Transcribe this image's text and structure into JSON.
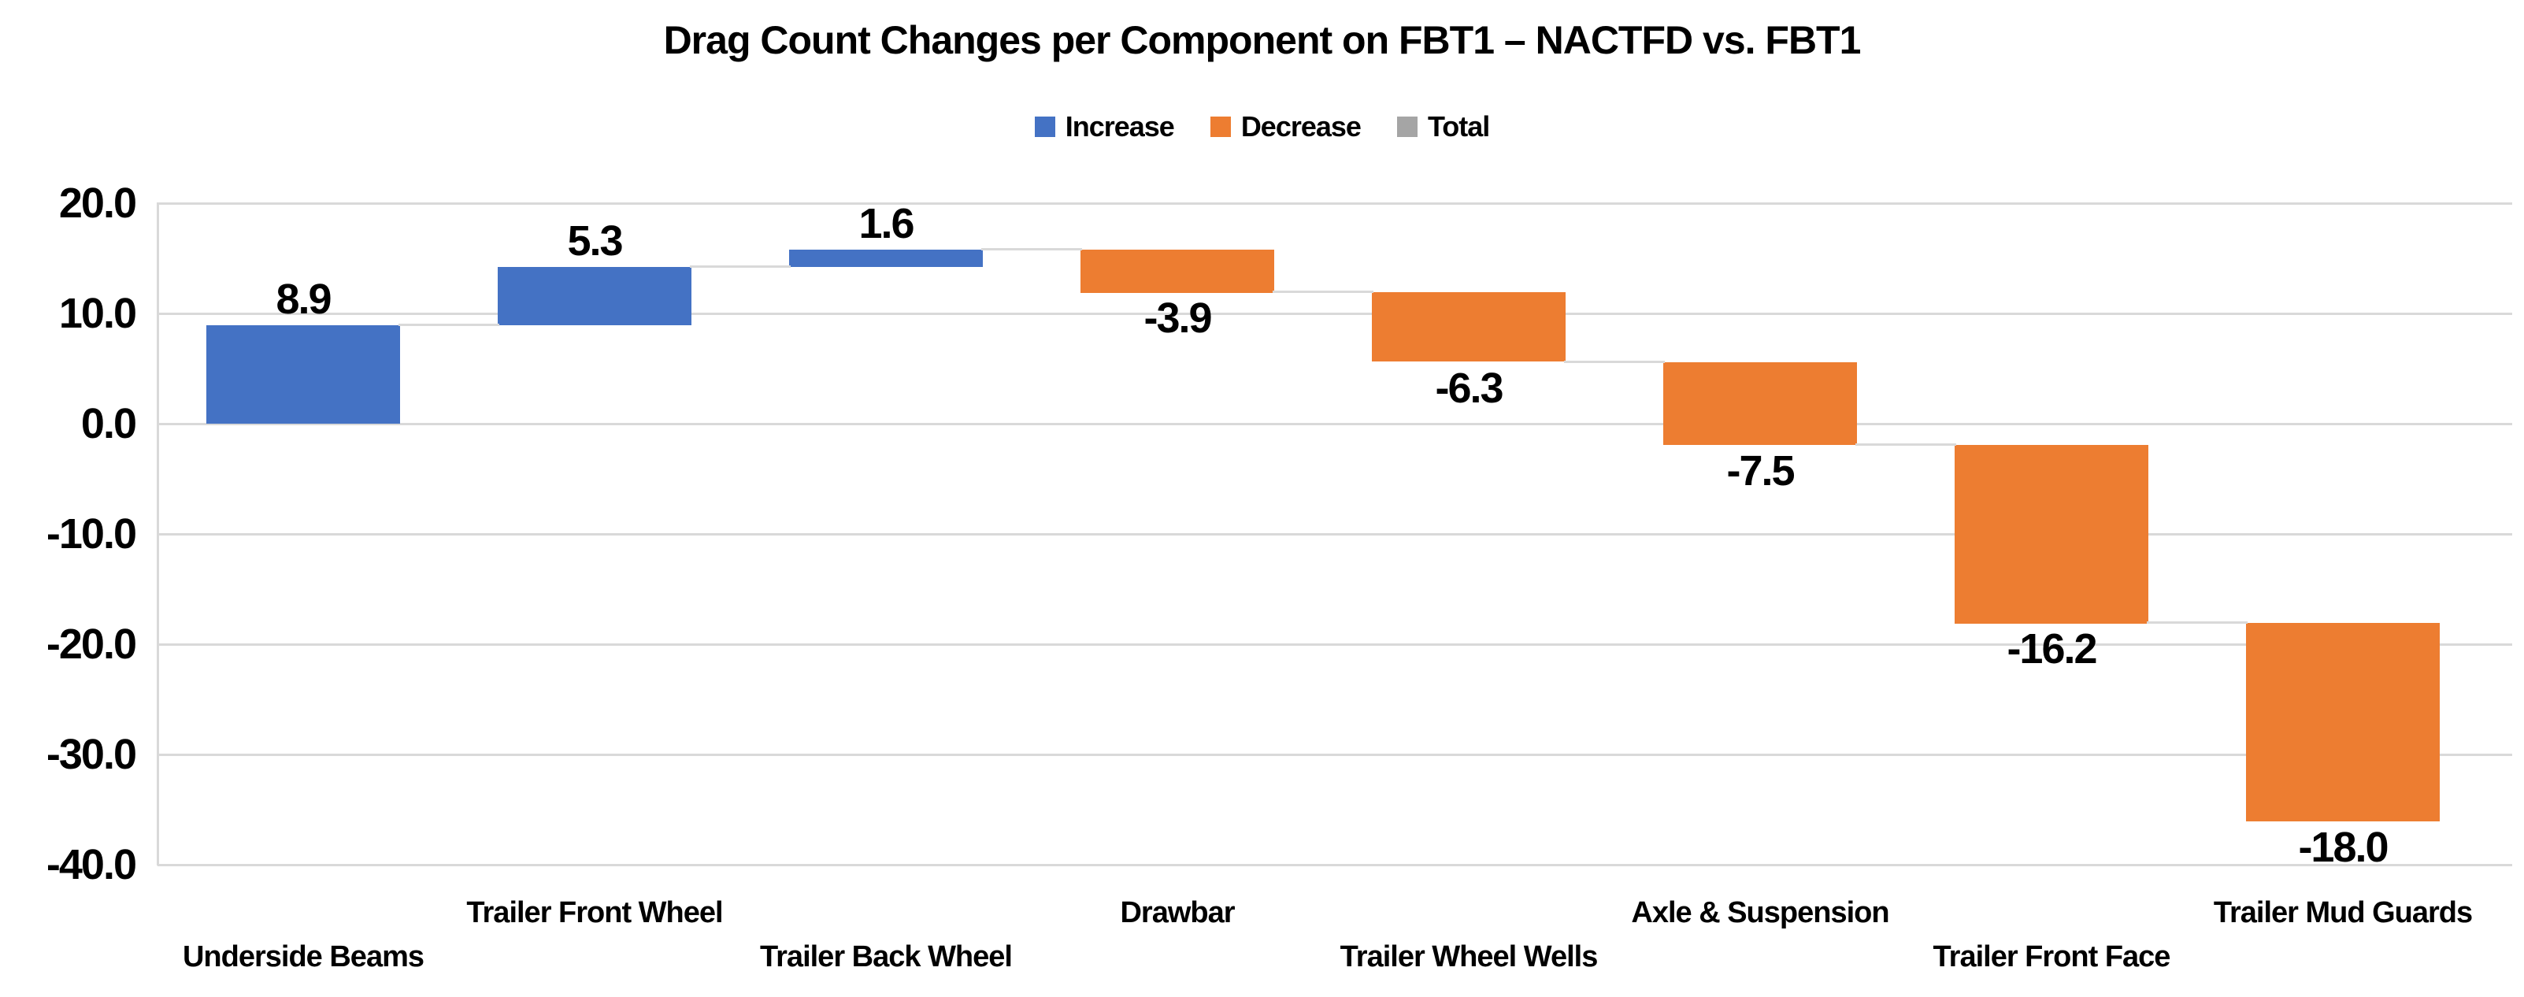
{
  "chart_data": {
    "type": "bar",
    "subtype": "waterfall",
    "title": "Drag Count Changes per Component on FBT1 – NACTFD vs. FBT1",
    "categories": [
      "Underside Beams",
      "Trailer Front Wheel",
      "Trailer Back Wheel",
      "Drawbar",
      "Trailer Wheel Wells",
      "Axle & Suspension",
      "Trailer Front Face",
      "Trailer Mud Guards"
    ],
    "values": [
      8.9,
      5.3,
      1.6,
      -3.9,
      -6.3,
      -7.5,
      -16.2,
      -18.0
    ],
    "data_labels": [
      "8.9",
      "5.3",
      "1.6",
      "-3.9",
      "-6.3",
      "-7.5",
      "-16.2",
      "-18.0"
    ],
    "cumulative": [
      8.9,
      14.2,
      15.8,
      11.9,
      5.6,
      -1.9,
      -18.1,
      -36.1
    ],
    "xlabel": "",
    "ylabel": "",
    "ylim": [
      -40,
      20
    ],
    "y_ticks": [
      20,
      10,
      0,
      -10,
      -20,
      -30,
      -40
    ],
    "y_tick_labels": [
      "20.0",
      "10.0",
      "0.0",
      "-10.0",
      "-20.0",
      "-30.0",
      "-40.0"
    ],
    "grid": true,
    "legend": {
      "position": "top",
      "entries": [
        {
          "label": "Increase",
          "color": "#4472C4"
        },
        {
          "label": "Decrease",
          "color": "#ED7D31"
        },
        {
          "label": "Total",
          "color": "#A5A5A5"
        }
      ]
    },
    "colors": {
      "increase": "#4472C4",
      "decrease": "#ED7D31",
      "total": "#A5A5A5",
      "gridline": "#D9D9D9",
      "connector": "#D9D9D9",
      "text": "#000000",
      "background": "#FFFFFF"
    }
  }
}
